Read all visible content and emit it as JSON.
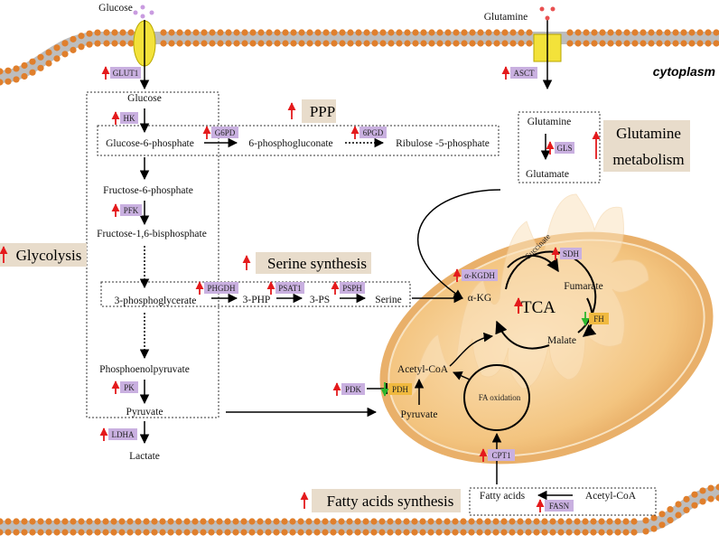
{
  "labels": {
    "glucose_top": "Glucose",
    "glutamine_top": "Glutamine",
    "cytoplasm": "cytoplasm",
    "glucose": "Glucose",
    "g6p": "Glucose-6-phosphate",
    "6pg": "6-phosphogluconate",
    "r5p": "Ribulose -5-phosphate",
    "f6p": "Fructose-6-phosphate",
    "f16bp": "Fructose-1,6-bisphosphate",
    "3pg": "3-phosphoglycerate",
    "3php": "3-PHP",
    "3ps": "3-PS",
    "serine": "Serine",
    "pep": "Phosphoenolpyruvate",
    "pyruvate": "Pyruvate",
    "lactate": "Lactate",
    "glutamine_inner": "Glutamine",
    "glutamate": "Glutamate",
    "akg": "α-KG",
    "succinate": "Succinate",
    "fumarate": "Fumarate",
    "malate": "Malate",
    "tca": "TCA",
    "acetyl_coa": "Acetyl-CoA",
    "pyruvate_mito": "Pyruvate",
    "fa_oxidation": "FA oxidation",
    "fatty_acids": "Fatty acids",
    "acetyl_coa_fa": "Acetyl-CoA"
  },
  "pathways": {
    "ppp": "PPP",
    "glutamine_l1": "Glutamine",
    "glutamine_l2": "metabolism",
    "glycolysis": "Glycolysis",
    "serine": "Serine synthesis",
    "fatty_acids": "Fatty acids synthesis"
  },
  "enzymes": {
    "glut1": "GLUT1",
    "asct": "ASCT",
    "hk": "HK",
    "g6pd": "G6PD",
    "6pgd": "6PGD",
    "gls": "GLS",
    "pfk": "PFK",
    "phgdh": "PHGDH",
    "psat1": "PSAT1",
    "psph": "PSPH",
    "pk": "PK",
    "ldha": "LDHA",
    "akgdh": "α-KGDH",
    "sdh": "SDH",
    "fh": "FH",
    "pdk": "PDK",
    "pdh": "PDH",
    "cpt1": "CPT1",
    "fasn": "FASN"
  },
  "colors": {
    "enzyme_box": "#c9b0e0",
    "enzyme_box_orange": "#f0b93f",
    "pathway_box": "#e8dccb",
    "up_arrow": "#e41a1c",
    "down_arrow": "#2db62d",
    "membrane_head": "#e07f2c",
    "mito_fill": "#f4c98d"
  }
}
